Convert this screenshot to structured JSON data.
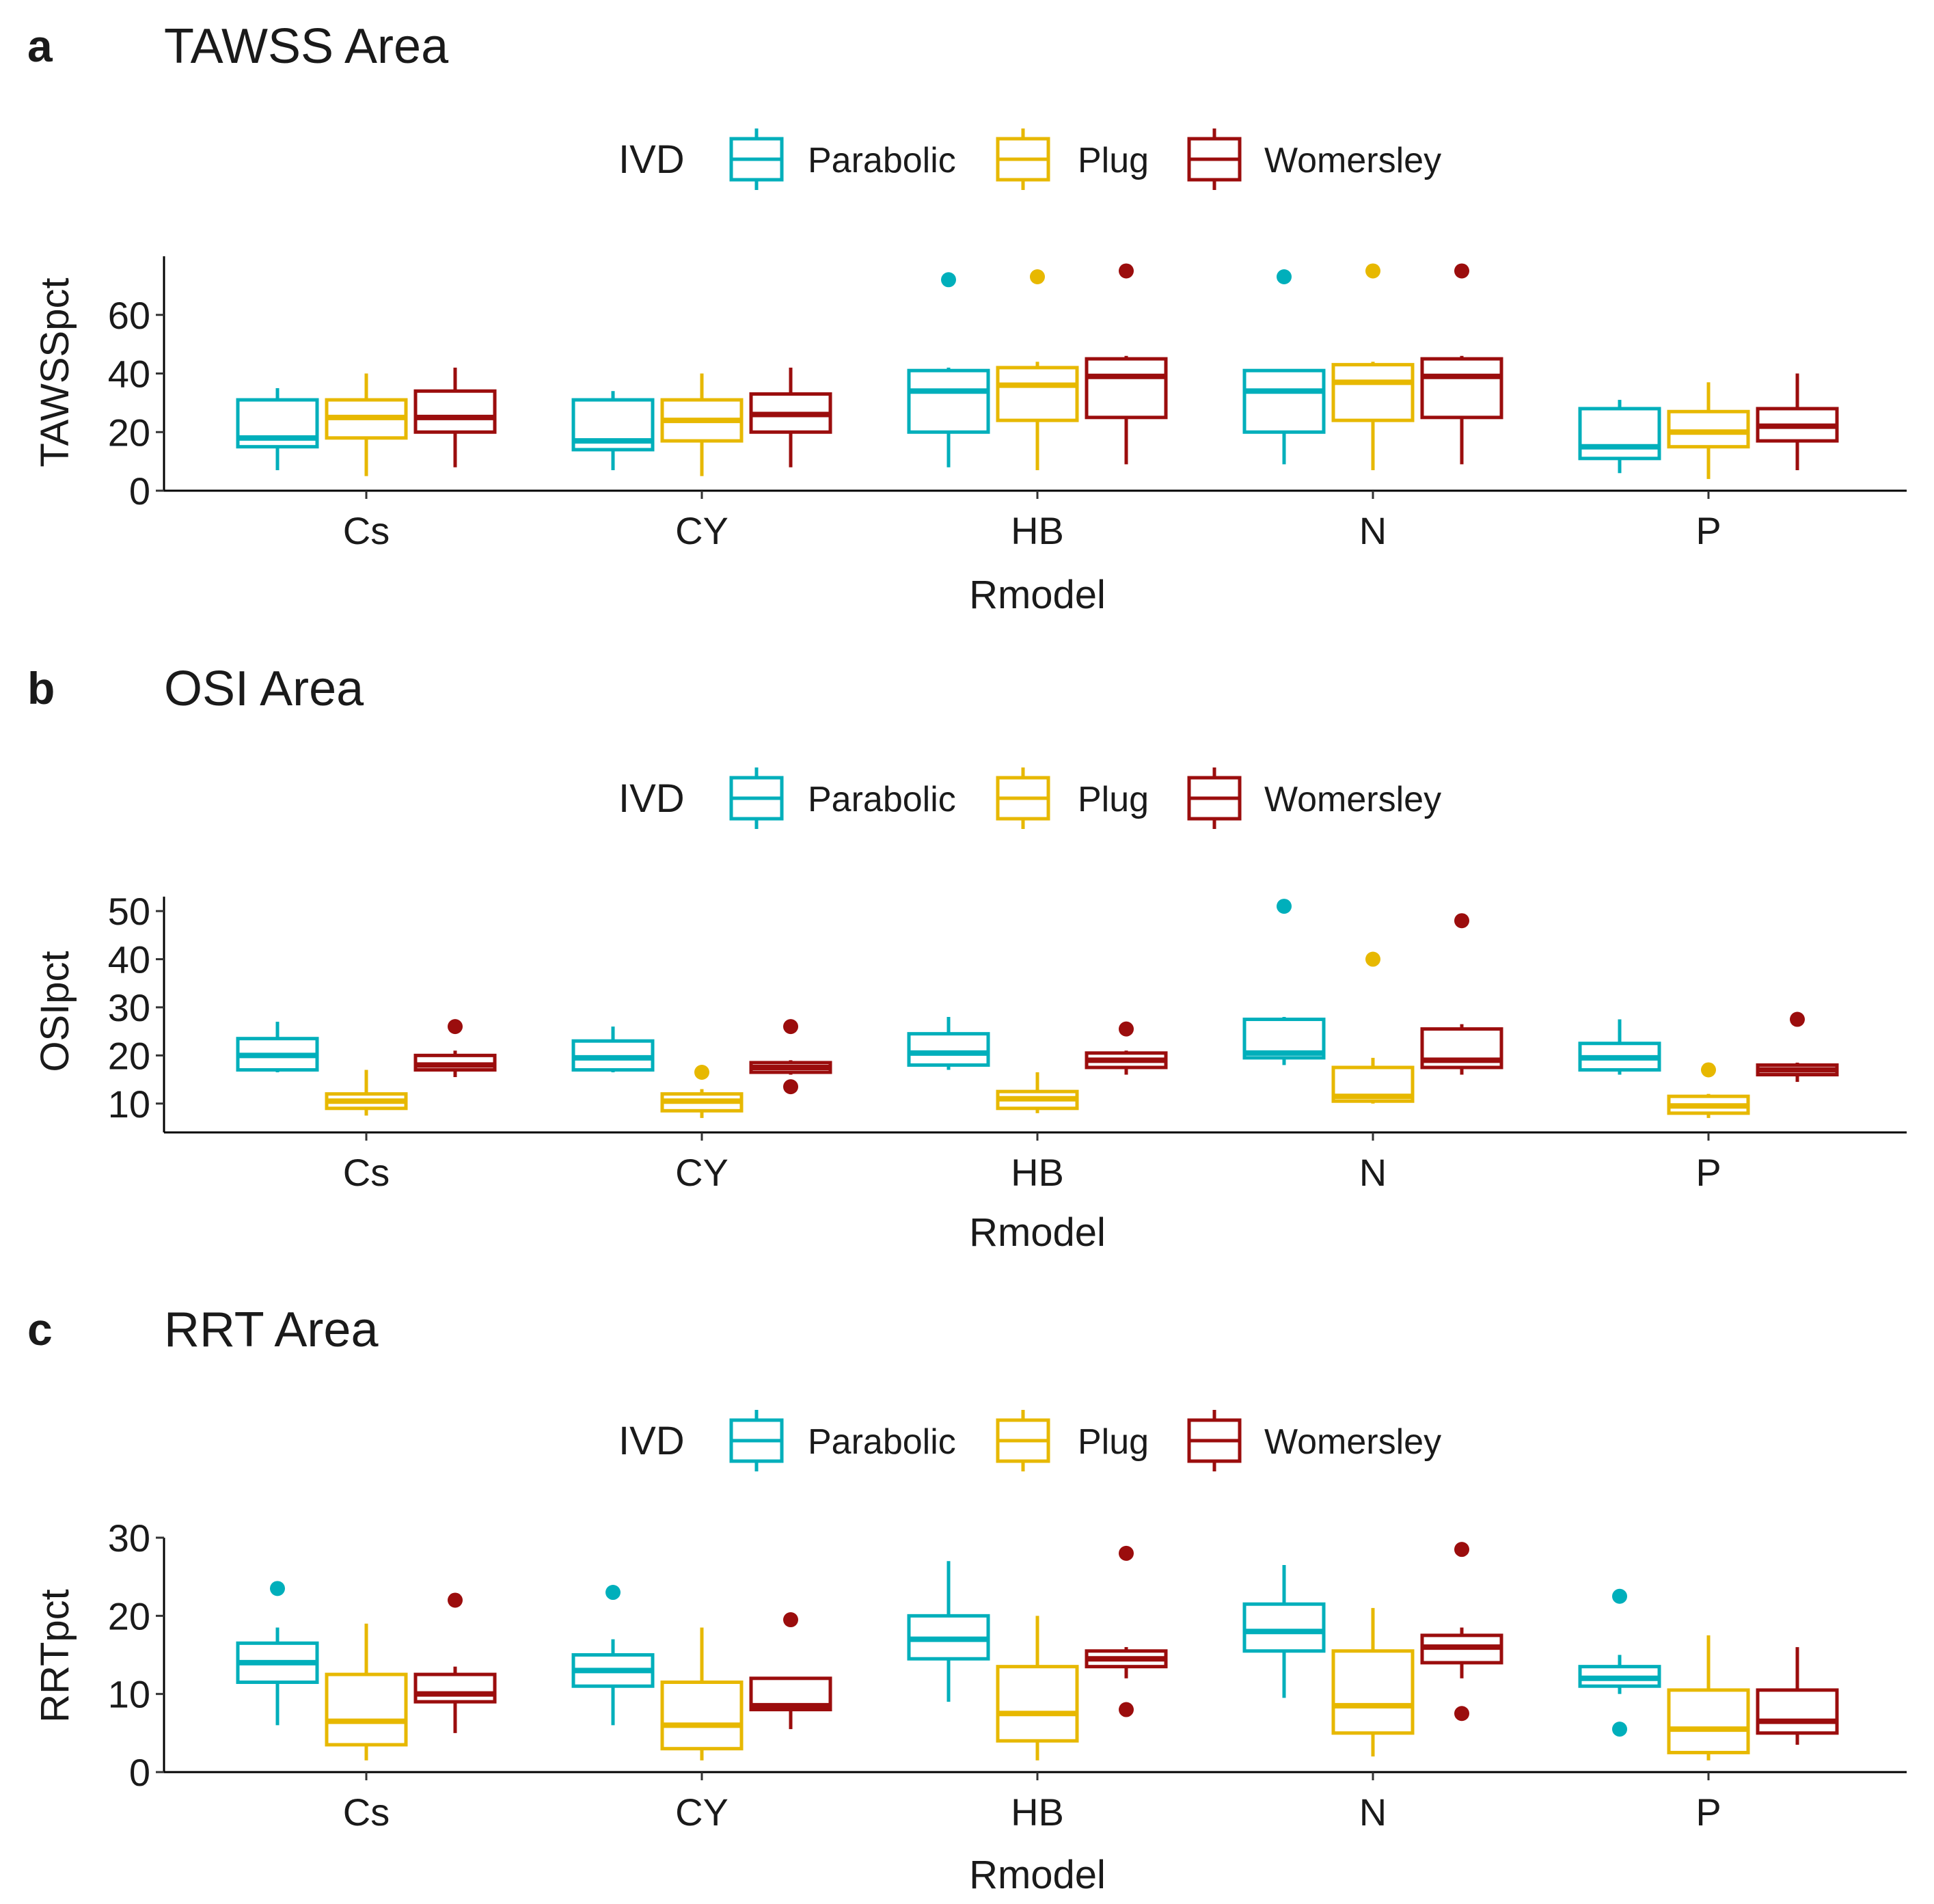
{
  "legend": {
    "title": "IVD",
    "entries": [
      {
        "name": "Parabolic",
        "color": "#00AFBB"
      },
      {
        "name": "Plug",
        "color": "#E7B800"
      },
      {
        "name": "Womersley",
        "color": "#9B0D0D"
      }
    ]
  },
  "chart_data": [
    {
      "type": "box",
      "panel_letter": "a",
      "title": "TAWSS Area",
      "xlabel": "Rmodel",
      "ylabel": "TAWSSpct",
      "ylim": [
        0,
        80
      ],
      "yticks": [
        0,
        20,
        40,
        60
      ],
      "categories": [
        "Cs",
        "CY",
        "HB",
        "N",
        "P"
      ],
      "series": [
        {
          "name": "Parabolic",
          "boxes": [
            {
              "whisker_low": 7,
              "q1": 15,
              "median": 18,
              "q3": 31,
              "whisker_high": 35,
              "outliers": []
            },
            {
              "whisker_low": 7,
              "q1": 14,
              "median": 17,
              "q3": 31,
              "whisker_high": 34,
              "outliers": []
            },
            {
              "whisker_low": 8,
              "q1": 20,
              "median": 34,
              "q3": 41,
              "whisker_high": 42,
              "outliers": [
                72
              ]
            },
            {
              "whisker_low": 9,
              "q1": 20,
              "median": 34,
              "q3": 41,
              "whisker_high": 41,
              "outliers": [
                73
              ]
            },
            {
              "whisker_low": 6,
              "q1": 11,
              "median": 15,
              "q3": 28,
              "whisker_high": 31,
              "outliers": []
            }
          ]
        },
        {
          "name": "Plug",
          "boxes": [
            {
              "whisker_low": 5,
              "q1": 18,
              "median": 25,
              "q3": 31,
              "whisker_high": 40,
              "outliers": []
            },
            {
              "whisker_low": 5,
              "q1": 17,
              "median": 24,
              "q3": 31,
              "whisker_high": 40,
              "outliers": []
            },
            {
              "whisker_low": 7,
              "q1": 24,
              "median": 36,
              "q3": 42,
              "whisker_high": 44,
              "outliers": [
                73
              ]
            },
            {
              "whisker_low": 7,
              "q1": 24,
              "median": 37,
              "q3": 43,
              "whisker_high": 44,
              "outliers": [
                75
              ]
            },
            {
              "whisker_low": 4,
              "q1": 15,
              "median": 20,
              "q3": 27,
              "whisker_high": 37,
              "outliers": []
            }
          ]
        },
        {
          "name": "Womersley",
          "boxes": [
            {
              "whisker_low": 8,
              "q1": 20,
              "median": 25,
              "q3": 34,
              "whisker_high": 42,
              "outliers": []
            },
            {
              "whisker_low": 8,
              "q1": 20,
              "median": 26,
              "q3": 33,
              "whisker_high": 42,
              "outliers": []
            },
            {
              "whisker_low": 9,
              "q1": 25,
              "median": 39,
              "q3": 45,
              "whisker_high": 46,
              "outliers": [
                75
              ]
            },
            {
              "whisker_low": 9,
              "q1": 25,
              "median": 39,
              "q3": 45,
              "whisker_high": 46,
              "outliers": [
                75
              ]
            },
            {
              "whisker_low": 7,
              "q1": 17,
              "median": 22,
              "q3": 28,
              "whisker_high": 40,
              "outliers": []
            }
          ]
        }
      ]
    },
    {
      "type": "box",
      "panel_letter": "b",
      "title": "OSI Area",
      "xlabel": "Rmodel",
      "ylabel": "OSIpct",
      "ylim": [
        4,
        53
      ],
      "yticks": [
        10,
        20,
        30,
        40,
        50
      ],
      "categories": [
        "Cs",
        "CY",
        "HB",
        "N",
        "P"
      ],
      "series": [
        {
          "name": "Parabolic",
          "boxes": [
            {
              "whisker_low": 16.5,
              "q1": 17,
              "median": 20,
              "q3": 23.5,
              "whisker_high": 27,
              "outliers": []
            },
            {
              "whisker_low": 16.5,
              "q1": 17,
              "median": 19.5,
              "q3": 23,
              "whisker_high": 26,
              "outliers": []
            },
            {
              "whisker_low": 17,
              "q1": 18,
              "median": 20.5,
              "q3": 24.5,
              "whisker_high": 28,
              "outliers": []
            },
            {
              "whisker_low": 18,
              "q1": 19.5,
              "median": 20.5,
              "q3": 27.5,
              "whisker_high": 28,
              "outliers": [
                51
              ]
            },
            {
              "whisker_low": 16,
              "q1": 17,
              "median": 19.5,
              "q3": 22.5,
              "whisker_high": 27.5,
              "outliers": []
            }
          ]
        },
        {
          "name": "Plug",
          "boxes": [
            {
              "whisker_low": 7.5,
              "q1": 9,
              "median": 10.5,
              "q3": 12,
              "whisker_high": 17,
              "outliers": []
            },
            {
              "whisker_low": 7,
              "q1": 8.5,
              "median": 10.5,
              "q3": 12,
              "whisker_high": 13,
              "outliers": [
                16.5
              ]
            },
            {
              "whisker_low": 8,
              "q1": 9,
              "median": 11,
              "q3": 12.5,
              "whisker_high": 16.5,
              "outliers": []
            },
            {
              "whisker_low": 10,
              "q1": 10.5,
              "median": 11.5,
              "q3": 17.5,
              "whisker_high": 19.5,
              "outliers": [
                40
              ]
            },
            {
              "whisker_low": 7,
              "q1": 8,
              "median": 9.5,
              "q3": 11.5,
              "whisker_high": 12,
              "outliers": [
                17
              ]
            }
          ]
        },
        {
          "name": "Womersley",
          "boxes": [
            {
              "whisker_low": 15.5,
              "q1": 17,
              "median": 18,
              "q3": 20,
              "whisker_high": 21,
              "outliers": [
                26
              ]
            },
            {
              "whisker_low": 16,
              "q1": 16.5,
              "median": 17.5,
              "q3": 18.5,
              "whisker_high": 19,
              "outliers": [
                26,
                13.5
              ]
            },
            {
              "whisker_low": 16,
              "q1": 17.5,
              "median": 19,
              "q3": 20.5,
              "whisker_high": 21,
              "outliers": [
                25.5
              ]
            },
            {
              "whisker_low": 16,
              "q1": 17.5,
              "median": 19,
              "q3": 25.5,
              "whisker_high": 26.5,
              "outliers": [
                48
              ]
            },
            {
              "whisker_low": 14.5,
              "q1": 16,
              "median": 17,
              "q3": 18,
              "whisker_high": 18.5,
              "outliers": [
                27.5
              ]
            }
          ]
        }
      ]
    },
    {
      "type": "box",
      "panel_letter": "c",
      "title": "RRT Area",
      "xlabel": "Rmodel",
      "ylabel": "RRTpct",
      "ylim": [
        0,
        30
      ],
      "yticks": [
        0,
        10,
        20,
        30
      ],
      "categories": [
        "Cs",
        "CY",
        "HB",
        "N",
        "P"
      ],
      "series": [
        {
          "name": "Parabolic",
          "boxes": [
            {
              "whisker_low": 6,
              "q1": 11.5,
              "median": 14,
              "q3": 16.5,
              "whisker_high": 18.5,
              "outliers": [
                23.5
              ]
            },
            {
              "whisker_low": 6,
              "q1": 11,
              "median": 13,
              "q3": 15,
              "whisker_high": 17,
              "outliers": [
                23
              ]
            },
            {
              "whisker_low": 9,
              "q1": 14.5,
              "median": 17,
              "q3": 20,
              "whisker_high": 27,
              "outliers": []
            },
            {
              "whisker_low": 9.5,
              "q1": 15.5,
              "median": 18,
              "q3": 21.5,
              "whisker_high": 26.5,
              "outliers": []
            },
            {
              "whisker_low": 10,
              "q1": 11,
              "median": 12,
              "q3": 13.5,
              "whisker_high": 15,
              "outliers": [
                22.5,
                5.5
              ]
            }
          ]
        },
        {
          "name": "Plug",
          "boxes": [
            {
              "whisker_low": 1.5,
              "q1": 3.5,
              "median": 6.5,
              "q3": 12.5,
              "whisker_high": 19,
              "outliers": []
            },
            {
              "whisker_low": 1.5,
              "q1": 3,
              "median": 6,
              "q3": 11.5,
              "whisker_high": 18.5,
              "outliers": []
            },
            {
              "whisker_low": 1.5,
              "q1": 4,
              "median": 7.5,
              "q3": 13.5,
              "whisker_high": 20,
              "outliers": []
            },
            {
              "whisker_low": 2,
              "q1": 5,
              "median": 8.5,
              "q3": 15.5,
              "whisker_high": 21,
              "outliers": []
            },
            {
              "whisker_low": 1.5,
              "q1": 2.5,
              "median": 5.5,
              "q3": 10.5,
              "whisker_high": 17.5,
              "outliers": []
            }
          ]
        },
        {
          "name": "Womersley",
          "boxes": [
            {
              "whisker_low": 5,
              "q1": 9,
              "median": 10,
              "q3": 12.5,
              "whisker_high": 13.5,
              "outliers": [
                22
              ]
            },
            {
              "whisker_low": 5.5,
              "q1": 8,
              "median": 8.5,
              "q3": 12,
              "whisker_high": 12,
              "outliers": [
                19.5
              ]
            },
            {
              "whisker_low": 12,
              "q1": 13.5,
              "median": 14.5,
              "q3": 15.5,
              "whisker_high": 16,
              "outliers": [
                28,
                8
              ]
            },
            {
              "whisker_low": 12,
              "q1": 14,
              "median": 16,
              "q3": 17.5,
              "whisker_high": 18.5,
              "outliers": [
                28.5,
                7.5
              ]
            },
            {
              "whisker_low": 3.5,
              "q1": 5,
              "median": 6.5,
              "q3": 10.5,
              "whisker_high": 16,
              "outliers": []
            }
          ]
        }
      ]
    }
  ]
}
